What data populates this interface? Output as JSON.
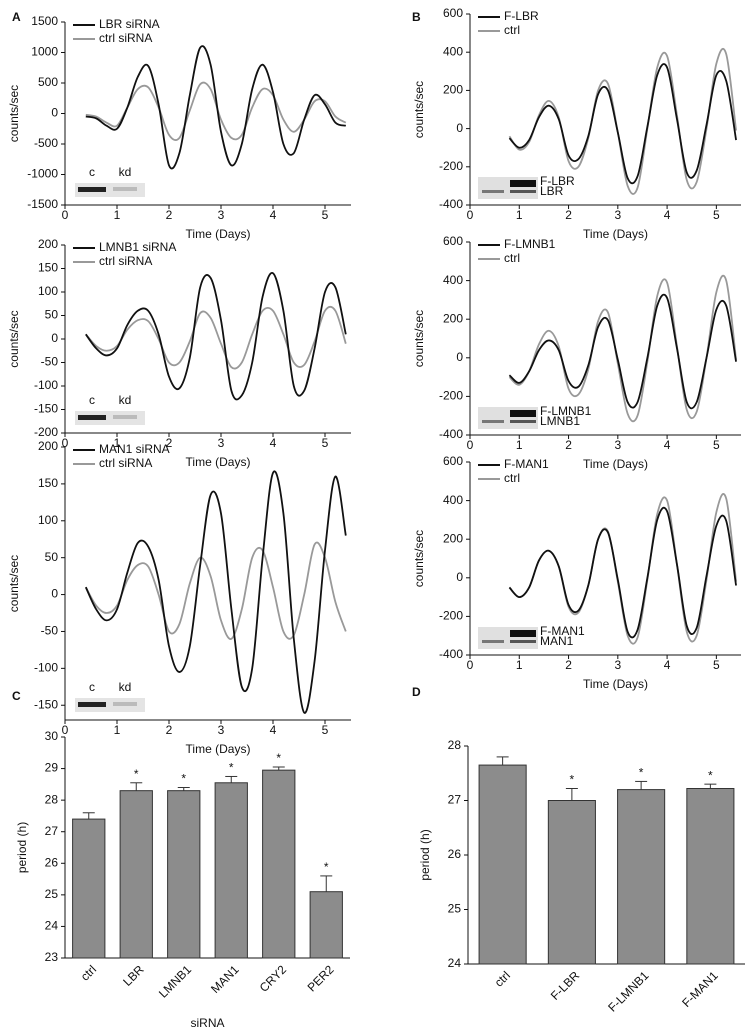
{
  "chart_data": [
    {
      "type": "line",
      "panel_label": "A",
      "ylabel": "counts/sec",
      "xlabel": "Time (Days)",
      "inset_labels": [
        "c",
        "kd"
      ],
      "xlim": [
        0,
        5.5
      ],
      "xticks": [
        0,
        1,
        2,
        3,
        4,
        5
      ],
      "ylim": [
        -1500,
        1500
      ],
      "yticks": [
        -1500,
        -1000,
        -500,
        0,
        500,
        1000,
        1500
      ],
      "x": [
        0.4,
        0.6,
        0.8,
        1.0,
        1.2,
        1.4,
        1.6,
        1.8,
        2.0,
        2.2,
        2.4,
        2.6,
        2.8,
        3.0,
        3.2,
        3.4,
        3.6,
        3.8,
        4.0,
        4.2,
        4.4,
        4.6,
        4.8,
        5.0,
        5.2,
        5.4
      ],
      "series": [
        {
          "name": "LBR siRNA",
          "color": "#111111",
          "values": [
            -50,
            -80,
            -200,
            -250,
            100,
            600,
            780,
            150,
            -850,
            -650,
            300,
            1080,
            800,
            -300,
            -850,
            -500,
            400,
            800,
            350,
            -500,
            -650,
            -100,
            300,
            150,
            -150,
            -200
          ]
        },
        {
          "name": "ctrl siRNA",
          "color": "#999999",
          "values": [
            -20,
            -50,
            -150,
            -200,
            100,
            400,
            430,
            100,
            -350,
            -400,
            50,
            480,
            400,
            -100,
            -400,
            -350,
            100,
            400,
            300,
            -100,
            -300,
            -100,
            200,
            200,
            -50,
            -150
          ]
        }
      ]
    },
    {
      "type": "line",
      "ylabel": "counts/sec",
      "xlabel": "Time (Days)",
      "inset_labels": [
        "c",
        "kd"
      ],
      "xlim": [
        0,
        5.5
      ],
      "xticks": [
        0,
        1,
        2,
        3,
        4,
        5
      ],
      "ylim": [
        -200,
        200
      ],
      "yticks": [
        -200,
        -150,
        -100,
        -50,
        0,
        50,
        100,
        150,
        200
      ],
      "x": [
        0.4,
        0.6,
        0.8,
        1.0,
        1.2,
        1.4,
        1.6,
        1.8,
        2.0,
        2.2,
        2.4,
        2.6,
        2.8,
        3.0,
        3.2,
        3.4,
        3.6,
        3.8,
        4.0,
        4.2,
        4.4,
        4.6,
        4.8,
        5.0,
        5.2,
        5.4
      ],
      "series": [
        {
          "name": "LMNB1 siRNA",
          "color": "#111111",
          "values": [
            10,
            -20,
            -35,
            -20,
            30,
            60,
            60,
            10,
            -80,
            -105,
            -40,
            110,
            130,
            40,
            -110,
            -120,
            -50,
            90,
            140,
            60,
            -100,
            -110,
            -20,
            100,
            110,
            10
          ]
        },
        {
          "name": "ctrl siRNA",
          "color": "#999999",
          "values": [
            10,
            -15,
            -25,
            -15,
            20,
            40,
            38,
            0,
            -50,
            -50,
            -5,
            55,
            45,
            -10,
            -60,
            -50,
            10,
            60,
            60,
            10,
            -50,
            -55,
            -5,
            60,
            60,
            -10
          ]
        }
      ]
    },
    {
      "type": "line",
      "ylabel": "counts/sec",
      "xlabel": "Time (Days)",
      "inset_labels": [
        "c",
        "kd"
      ],
      "xlim": [
        0,
        5.5
      ],
      "xticks": [
        0,
        1,
        2,
        3,
        4,
        5
      ],
      "ylim": [
        -170,
        200
      ],
      "yticks": [
        -150,
        -100,
        -50,
        0,
        50,
        100,
        150,
        200
      ],
      "x": [
        0.4,
        0.6,
        0.8,
        1.0,
        1.2,
        1.4,
        1.6,
        1.8,
        2.0,
        2.2,
        2.4,
        2.6,
        2.8,
        3.0,
        3.2,
        3.4,
        3.6,
        3.8,
        4.0,
        4.2,
        4.4,
        4.6,
        4.8,
        5.0,
        5.2,
        5.4
      ],
      "series": [
        {
          "name": "MAN1 siRNA",
          "color": "#111111",
          "values": [
            10,
            -20,
            -35,
            -20,
            30,
            70,
            65,
            20,
            -70,
            -105,
            -70,
            40,
            135,
            110,
            -20,
            -125,
            -100,
            50,
            165,
            110,
            -60,
            -160,
            -90,
            60,
            160,
            80
          ]
        },
        {
          "name": "ctrl siRNA",
          "color": "#999999",
          "values": [
            10,
            -15,
            -25,
            -15,
            20,
            40,
            38,
            0,
            -50,
            -40,
            15,
            50,
            25,
            -35,
            -60,
            -20,
            50,
            60,
            10,
            -50,
            -55,
            0,
            68,
            50,
            -10,
            -50
          ]
        }
      ]
    },
    {
      "type": "line",
      "panel_label": "B",
      "ylabel": "counts/sec",
      "xlabel": "Time (Days)",
      "inset_labels": [
        "F-LBR",
        "LBR"
      ],
      "xlim": [
        0,
        5.5
      ],
      "xticks": [
        0,
        1,
        2,
        3,
        4,
        5
      ],
      "ylim": [
        -400,
        600
      ],
      "yticks": [
        -400,
        -200,
        0,
        200,
        400,
        600
      ],
      "x": [
        0.4,
        0.6,
        0.8,
        1.0,
        1.2,
        1.4,
        1.6,
        1.8,
        2.0,
        2.2,
        2.4,
        2.6,
        2.8,
        3.0,
        3.2,
        3.4,
        3.6,
        3.8,
        4.0,
        4.2,
        4.4,
        4.6,
        4.8,
        5.0,
        5.2,
        5.4
      ],
      "series": [
        {
          "name": "F-LBR",
          "color": "#111111",
          "values": [
            null,
            null,
            -50,
            -100,
            -60,
            60,
            120,
            50,
            -140,
            -160,
            -40,
            180,
            200,
            -20,
            -260,
            -250,
            10,
            280,
            320,
            50,
            -230,
            -220,
            20,
            280,
            250,
            -60
          ]
        },
        {
          "name": "ctrl",
          "color": "#999999",
          "values": [
            null,
            null,
            -40,
            -110,
            -70,
            70,
            145,
            60,
            -170,
            -200,
            -50,
            200,
            235,
            -20,
            -300,
            -310,
            0,
            320,
            380,
            70,
            -270,
            -280,
            0,
            340,
            390,
            -10
          ]
        }
      ]
    },
    {
      "type": "line",
      "ylabel": "counts/sec",
      "xlabel": "Time (Days)",
      "inset_labels": [
        "F-LMNB1",
        "LMNB1"
      ],
      "xlim": [
        0,
        5.5
      ],
      "xticks": [
        0,
        1,
        2,
        3,
        4,
        5
      ],
      "ylim": [
        -400,
        600
      ],
      "yticks": [
        -400,
        -200,
        0,
        200,
        400,
        600
      ],
      "x": [
        0.4,
        0.6,
        0.8,
        1.0,
        1.2,
        1.4,
        1.6,
        1.8,
        2.0,
        2.2,
        2.4,
        2.6,
        2.8,
        3.0,
        3.2,
        3.4,
        3.6,
        3.8,
        4.0,
        4.2,
        4.4,
        4.6,
        4.8,
        5.0,
        5.2,
        5.4
      ],
      "series": [
        {
          "name": "F-LMNB1",
          "color": "#111111",
          "values": [
            null,
            null,
            -90,
            -130,
            -70,
            40,
            90,
            40,
            -120,
            -150,
            -40,
            160,
            195,
            -10,
            -230,
            -230,
            0,
            270,
            310,
            50,
            -230,
            -230,
            0,
            250,
            270,
            -20
          ]
        },
        {
          "name": "ctrl",
          "color": "#999999",
          "values": [
            null,
            null,
            -100,
            -140,
            -70,
            70,
            140,
            60,
            -160,
            -190,
            -60,
            190,
            235,
            -30,
            -290,
            -300,
            -20,
            320,
            390,
            60,
            -270,
            -280,
            0,
            340,
            400,
            -10
          ]
        }
      ]
    },
    {
      "type": "line",
      "ylabel": "counts/sec",
      "xlabel": "Time (Days)",
      "inset_labels": [
        "F-MAN1",
        "MAN1"
      ],
      "xlim": [
        0,
        5.5
      ],
      "xticks": [
        0,
        1,
        2,
        3,
        4,
        5
      ],
      "ylim": [
        -400,
        600
      ],
      "yticks": [
        -400,
        -200,
        0,
        200,
        400,
        600
      ],
      "x": [
        0.4,
        0.6,
        0.8,
        1.0,
        1.2,
        1.4,
        1.6,
        1.8,
        2.0,
        2.2,
        2.4,
        2.6,
        2.8,
        3.0,
        3.2,
        3.4,
        3.6,
        3.8,
        4.0,
        4.2,
        4.4,
        4.6,
        4.8,
        5.0,
        5.2,
        5.4
      ],
      "series": [
        {
          "name": "F-MAN1",
          "color": "#111111",
          "values": [
            null,
            null,
            -50,
            -100,
            -50,
            90,
            140,
            60,
            -140,
            -170,
            -40,
            200,
            235,
            -10,
            -280,
            -270,
            0,
            300,
            345,
            70,
            -250,
            -260,
            10,
            270,
            295,
            -40
          ]
        },
        {
          "name": "ctrl",
          "color": "#999999",
          "values": [
            null,
            null,
            -50,
            -100,
            -50,
            90,
            140,
            60,
            -150,
            -180,
            -40,
            200,
            240,
            -20,
            -300,
            -310,
            -10,
            330,
            400,
            70,
            -280,
            -300,
            -10,
            340,
            410,
            -20
          ]
        }
      ]
    },
    {
      "type": "bar",
      "panel_label": "C",
      "ylabel": "period (h)",
      "xlabel": "siRNA",
      "color": "#8c8c8c",
      "categories": [
        "ctrl",
        "LBR",
        "LMNB1",
        "MAN1",
        "CRY2",
        "PER2"
      ],
      "values": [
        27.4,
        28.3,
        28.3,
        28.55,
        28.95,
        25.1
      ],
      "errors": [
        0.2,
        0.25,
        0.1,
        0.2,
        0.1,
        0.5
      ],
      "significance": [
        null,
        "*",
        "*",
        "*",
        "*",
        "*"
      ],
      "ylim": [
        23,
        30
      ],
      "yticks": [
        23,
        24,
        25,
        26,
        27,
        28,
        29,
        30
      ]
    },
    {
      "type": "bar",
      "panel_label": "D",
      "ylabel": "period (h)",
      "color": "#8c8c8c",
      "categories": [
        "ctrl",
        "F-LBR",
        "F-LMNB1",
        "F-MAN1"
      ],
      "values": [
        27.65,
        27.0,
        27.2,
        27.22
      ],
      "errors": [
        0.15,
        0.22,
        0.15,
        0.08
      ],
      "significance": [
        null,
        "*",
        "*",
        "*"
      ],
      "ylim": [
        24,
        28
      ],
      "yticks": [
        24,
        25,
        26,
        27,
        28
      ]
    }
  ]
}
